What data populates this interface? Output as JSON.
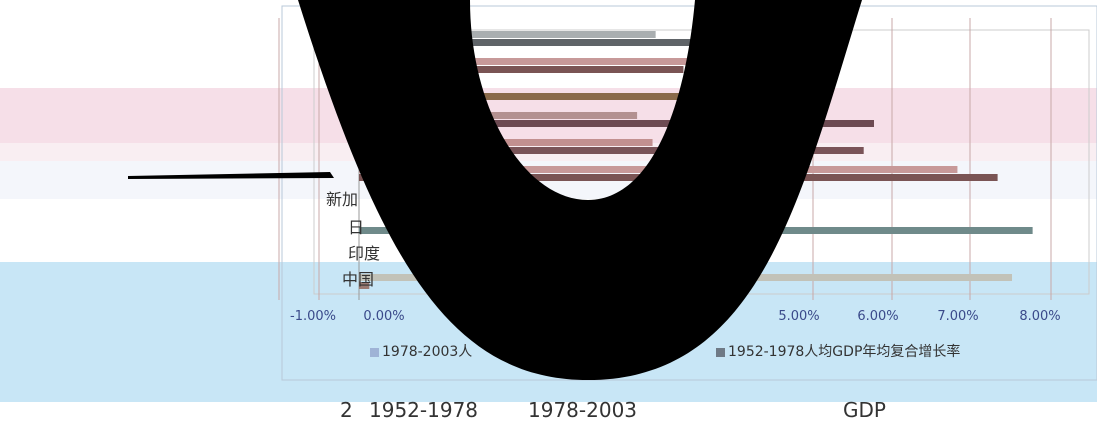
{
  "chart_data": {
    "type": "bar",
    "orientation": "horizontal",
    "categories_visible": [
      "新加",
      "日",
      "印度",
      "中国"
    ],
    "xticks": [
      "-1.00%",
      "0.00%",
      "5.00%",
      "6.00%",
      "7.00%",
      "8.00%"
    ],
    "xlim": [
      -0.01,
      0.08
    ],
    "series": [
      {
        "name": "1978-2003人",
        "color": "#9fb3d6"
      },
      {
        "name": "1952-1978人均GDP年均复合增长率",
        "color": "#6f7a86"
      }
    ],
    "bars": [
      {
        "color": "#a9aeb0",
        "end": 0.0288
      },
      {
        "color": "#5f6468",
        "end": 0.0331
      },
      {
        "color": "#c79999",
        "end": 0.0323
      },
      {
        "color": "#7a5454",
        "end": 0.0315
      },
      {
        "color": "#8a6a4a",
        "end": 0.0426
      },
      {
        "color": "#b39090",
        "end": 0.027
      },
      {
        "color": "#6d4a52",
        "end": 0.05
      },
      {
        "color": "#c29090",
        "end": 0.0285
      },
      {
        "color": "#7a5458",
        "end": 0.049
      },
      {
        "color": "#c79999",
        "end": 0.0581
      },
      {
        "color": "#7a5454",
        "end": 0.062
      },
      {
        "color": "#6f8a8a",
        "end": 0.0654
      },
      {
        "color": "#c2c2b8",
        "end": 0.0634
      },
      {
        "color": "#9a7a72",
        "end": 0.001
      }
    ],
    "legend_position": "bottom",
    "grid": true
  },
  "caption": {
    "number": "2",
    "period_a": "1952-1978",
    "period_b": "1978-2003",
    "metric": "GDP"
  }
}
